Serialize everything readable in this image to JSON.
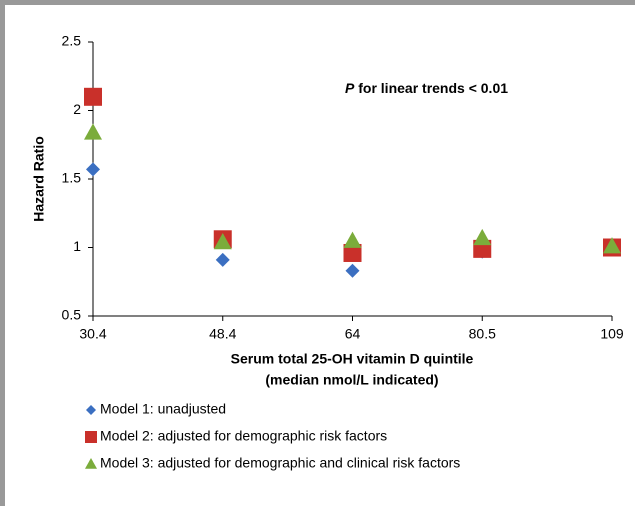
{
  "chart_data": {
    "type": "scatter",
    "annotation_italic": "P",
    "annotation": "for linear trends < 0.01",
    "x_label": [
      "Serum total 25-OH vitamin D quintile",
      "(median nmol/L indicated)"
    ],
    "y_label": "Hazard Ratio",
    "categories": [
      "30.4",
      "48.4",
      "64",
      "80.5",
      "109"
    ],
    "ylim": [
      0.5,
      2.5
    ],
    "yticks": [
      0.5,
      1,
      1.5,
      2,
      2.5
    ],
    "series": [
      {
        "name": "Model 1: unadjusted",
        "color": "#3b6fc1",
        "marker": "diamond",
        "values": [
          1.57,
          0.91,
          0.83,
          0.97,
          1.0
        ]
      },
      {
        "name": "Model 2: adjusted for demographic risk factors",
        "color": "#c9302a",
        "marker": "square",
        "values": [
          2.1,
          1.06,
          0.96,
          0.99,
          1.0
        ]
      },
      {
        "name": "Model 3: adjusted for demographic and clinical risk factors",
        "color": "#7bac3b",
        "marker": "triangle",
        "values": [
          1.84,
          1.04,
          1.05,
          1.07,
          1.01
        ]
      }
    ]
  }
}
